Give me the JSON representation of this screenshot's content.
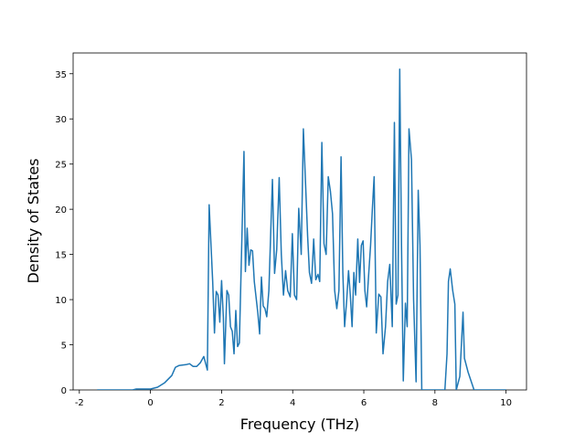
{
  "chart_data": {
    "type": "line",
    "xlabel": "Frequency (THz)",
    "ylabel": "Density of States",
    "xlim": [
      -2.175,
      10.575
    ],
    "ylim": [
      0,
      37.3
    ],
    "xticks": [
      -2,
      0,
      2,
      4,
      6,
      8,
      10
    ],
    "yticks": [
      0,
      5,
      10,
      15,
      20,
      25,
      30,
      35
    ],
    "series": [
      {
        "color": "#1f77b4",
        "x": [
          -1.5,
          -0.5,
          -0.4,
          0,
          0.2,
          0.4,
          0.6,
          0.7,
          0.8,
          1.0,
          1.1,
          1.2,
          1.3,
          1.4,
          1.5,
          1.6,
          1.65,
          1.75,
          1.8,
          1.85,
          1.9,
          1.95,
          2.0,
          2.05,
          2.08,
          2.15,
          2.2,
          2.25,
          2.3,
          2.35,
          2.4,
          2.45,
          2.5,
          2.63,
          2.67,
          2.72,
          2.77,
          2.82,
          2.87,
          2.92,
          3.02,
          3.07,
          3.12,
          3.17,
          3.22,
          3.27,
          3.33,
          3.43,
          3.49,
          3.55,
          3.62,
          3.68,
          3.74,
          3.8,
          3.86,
          3.93,
          3.99,
          4.05,
          4.11,
          4.17,
          4.24,
          4.3,
          4.36,
          4.42,
          4.47,
          4.53,
          4.59,
          4.65,
          4.71,
          4.76,
          4.82,
          4.88,
          4.94,
          5.0,
          5.06,
          5.12,
          5.18,
          5.24,
          5.3,
          5.36,
          5.41,
          5.46,
          5.52,
          5.57,
          5.62,
          5.67,
          5.72,
          5.77,
          5.83,
          5.88,
          5.93,
          5.98,
          6.03,
          6.08,
          6.14,
          6.19,
          6.24,
          6.29,
          6.35,
          6.42,
          6.48,
          6.54,
          6.61,
          6.67,
          6.73,
          6.8,
          6.86,
          6.91,
          6.96,
          7.01,
          7.06,
          7.11,
          7.17,
          7.22,
          7.27,
          7.34,
          7.4,
          7.47,
          7.53,
          7.58,
          7.63,
          8.28,
          8.34,
          8.38,
          8.43,
          8.5,
          8.56,
          8.6,
          8.7,
          8.79,
          8.83,
          8.93,
          9.1,
          10.0
        ],
        "values": [
          0,
          0,
          0.1,
          0.1,
          0.3,
          0.8,
          1.6,
          2.5,
          2.7,
          2.8,
          2.9,
          2.6,
          2.6,
          3.0,
          3.7,
          2.2,
          20.5,
          12,
          6.3,
          10.9,
          10.5,
          7.5,
          12.1,
          8,
          2.9,
          11,
          10.5,
          7,
          6.5,
          4,
          8.8,
          4.8,
          5.2,
          26.4,
          13.1,
          17.9,
          13.8,
          15.5,
          15.4,
          12,
          8.5,
          6.2,
          12.5,
          9.3,
          9,
          8.1,
          11,
          23.3,
          12.9,
          15.5,
          23.5,
          15,
          10.5,
          13.2,
          11,
          10.3,
          17.3,
          10.5,
          10,
          20.1,
          15,
          28.9,
          23,
          17,
          13,
          11.8,
          16.7,
          12.2,
          12.8,
          12,
          27.4,
          16.2,
          15,
          23.6,
          22,
          19.5,
          11,
          9,
          11,
          25.8,
          13,
          7,
          10,
          13.2,
          10.5,
          7,
          13,
          10.5,
          16.7,
          11.9,
          16,
          16.5,
          11,
          9.2,
          13,
          16,
          20,
          23.6,
          6.3,
          10.6,
          10.3,
          4,
          7,
          12,
          13.9,
          7,
          29.6,
          9.5,
          10.5,
          35.5,
          16,
          1,
          9.6,
          7,
          28.9,
          25.5,
          10,
          0.9,
          22.1,
          16,
          0,
          0,
          4,
          12,
          13.4,
          11,
          9.5,
          0,
          1.5,
          8.6,
          3.5,
          2,
          0,
          0
        ]
      }
    ]
  }
}
